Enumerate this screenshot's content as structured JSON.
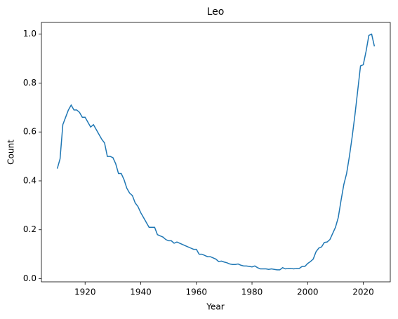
{
  "chart_data": {
    "type": "line",
    "title": "Leo",
    "xlabel": "Year",
    "ylabel": "Count",
    "x": [
      1910,
      1911,
      1912,
      1913,
      1914,
      1915,
      1916,
      1917,
      1918,
      1919,
      1920,
      1921,
      1922,
      1923,
      1924,
      1925,
      1926,
      1927,
      1928,
      1929,
      1930,
      1931,
      1932,
      1933,
      1934,
      1935,
      1936,
      1937,
      1938,
      1939,
      1940,
      1941,
      1942,
      1943,
      1944,
      1945,
      1946,
      1947,
      1948,
      1949,
      1950,
      1951,
      1952,
      1953,
      1954,
      1955,
      1956,
      1957,
      1958,
      1959,
      1960,
      1961,
      1962,
      1963,
      1964,
      1965,
      1966,
      1967,
      1968,
      1969,
      1970,
      1971,
      1972,
      1973,
      1974,
      1975,
      1976,
      1977,
      1978,
      1979,
      1980,
      1981,
      1982,
      1983,
      1984,
      1985,
      1986,
      1987,
      1988,
      1989,
      1990,
      1991,
      1992,
      1993,
      1994,
      1995,
      1996,
      1997,
      1998,
      1999,
      2000,
      2001,
      2002,
      2003,
      2004,
      2005,
      2006,
      2007,
      2008,
      2009,
      2010,
      2011,
      2012,
      2013,
      2014,
      2015,
      2016,
      2017,
      2018,
      2019,
      2020,
      2021,
      2022,
      2023,
      2024
    ],
    "series": [
      {
        "color": "#1f77b4",
        "values": [
          0.45,
          0.49,
          0.63,
          0.66,
          0.69,
          0.71,
          0.69,
          0.69,
          0.68,
          0.66,
          0.66,
          0.64,
          0.62,
          0.63,
          0.61,
          0.59,
          0.57,
          0.555,
          0.5,
          0.5,
          0.495,
          0.47,
          0.43,
          0.43,
          0.405,
          0.37,
          0.35,
          0.34,
          0.31,
          0.295,
          0.27,
          0.25,
          0.23,
          0.21,
          0.21,
          0.21,
          0.18,
          0.175,
          0.17,
          0.16,
          0.155,
          0.155,
          0.145,
          0.15,
          0.145,
          0.14,
          0.135,
          0.13,
          0.125,
          0.12,
          0.12,
          0.1,
          0.1,
          0.095,
          0.09,
          0.09,
          0.085,
          0.08,
          0.07,
          0.072,
          0.068,
          0.065,
          0.06,
          0.058,
          0.058,
          0.06,
          0.055,
          0.052,
          0.052,
          0.05,
          0.048,
          0.052,
          0.045,
          0.04,
          0.04,
          0.04,
          0.038,
          0.04,
          0.038,
          0.036,
          0.036,
          0.045,
          0.04,
          0.042,
          0.042,
          0.04,
          0.042,
          0.042,
          0.05,
          0.05,
          0.062,
          0.07,
          0.08,
          0.11,
          0.125,
          0.13,
          0.148,
          0.15,
          0.16,
          0.185,
          0.21,
          0.25,
          0.32,
          0.385,
          0.43,
          0.5,
          0.58,
          0.67,
          0.77,
          0.87,
          0.875,
          0.93,
          0.995,
          1.0,
          0.95
        ]
      }
    ],
    "xlim": [
      1904.3,
      2029.7
    ],
    "xticks": [
      1920,
      1940,
      1960,
      1980,
      2000,
      2020
    ],
    "ylim": [
      -0.013,
      1.048
    ],
    "yticks": [
      {
        "value": 0,
        "label": "0.0"
      },
      0.2,
      0.4,
      0.6,
      0.8,
      {
        "value": 1,
        "label": "1.0"
      }
    ]
  }
}
